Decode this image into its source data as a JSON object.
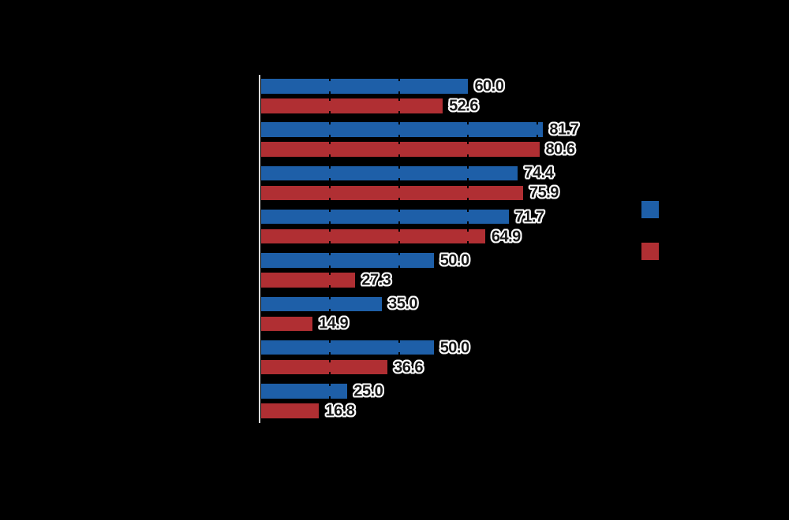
{
  "chart_data": {
    "type": "bar",
    "orientation": "horizontal",
    "xlim": [
      0,
      100
    ],
    "gridline_interval": 20,
    "grid_visible_as_tick_notches": true,
    "categories": [
      "",
      "",
      "",
      "",
      "",
      "",
      "",
      ""
    ],
    "series": [
      {
        "name": "",
        "color": "#1E5FA8",
        "values": [
          60.0,
          81.7,
          74.4,
          71.7,
          50.0,
          35.0,
          50.0,
          25.0
        ],
        "labels": [
          "60.0",
          "81.7",
          "74.4",
          "71.7",
          "50.0",
          "35.0",
          "50.0",
          "25.0"
        ]
      },
      {
        "name": "",
        "color": "#B02F33",
        "values": [
          52.6,
          80.6,
          75.9,
          64.9,
          27.3,
          14.9,
          36.6,
          16.8
        ],
        "labels": [
          "52.6",
          "80.6",
          "75.9",
          "64.9",
          "27.3",
          "14.9",
          "36.6",
          "16.8"
        ]
      }
    ],
    "legend": {
      "position": "right",
      "items": [
        {
          "color": "#1E5FA8",
          "label": ""
        },
        {
          "color": "#B02F33",
          "label": ""
        }
      ]
    },
    "colors": {
      "background": "#000000",
      "axis_line": "#DCDCDC",
      "value_label_fill": "#161616",
      "value_label_halo": "#FFFFFF",
      "tick_notch": "#000000"
    }
  }
}
